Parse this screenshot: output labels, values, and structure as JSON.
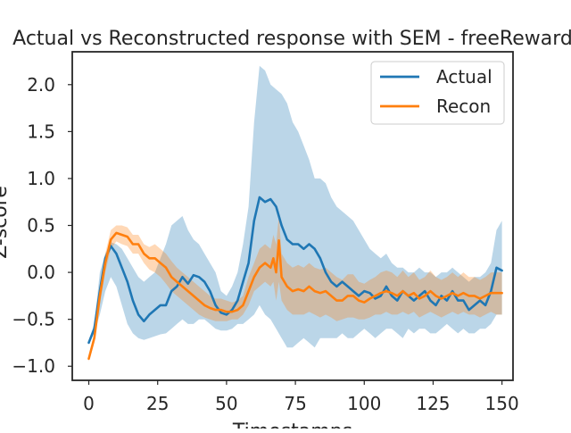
{
  "chart_data": {
    "type": "line",
    "title": "Actual vs Reconstructed response with SEM - freeReward",
    "xlabel": "Timestamps",
    "ylabel": "Z-score",
    "xlim": [
      -6,
      154
    ],
    "ylim": [
      -1.15,
      2.35
    ],
    "xticks": [
      0,
      25,
      50,
      75,
      100,
      125,
      150
    ],
    "yticks": [
      -1.0,
      -0.5,
      0.0,
      0.5,
      1.0,
      1.5,
      2.0
    ],
    "xtick_labels": [
      "0",
      "25",
      "50",
      "75",
      "100",
      "125",
      "150"
    ],
    "ytick_labels": [
      "−1.0",
      "−0.5",
      "0.0",
      "0.5",
      "1.0",
      "1.5",
      "2.0"
    ],
    "grid": false,
    "legend_position": "upper right",
    "series": [
      {
        "name": "Actual",
        "color": "#1f77b4",
        "band_color": "#1f77b4",
        "x": [
          0,
          2,
          4,
          6,
          8,
          10,
          12,
          14,
          16,
          18,
          20,
          22,
          24,
          26,
          28,
          30,
          32,
          34,
          36,
          38,
          40,
          42,
          44,
          46,
          48,
          50,
          52,
          54,
          56,
          58,
          60,
          62,
          64,
          66,
          68,
          70,
          72,
          74,
          76,
          78,
          80,
          82,
          84,
          86,
          88,
          90,
          92,
          94,
          96,
          98,
          100,
          102,
          104,
          106,
          108,
          110,
          112,
          114,
          116,
          118,
          120,
          122,
          124,
          126,
          128,
          130,
          132,
          134,
          136,
          138,
          140,
          142,
          144,
          146,
          148,
          150
        ],
        "y": [
          -0.75,
          -0.6,
          -0.2,
          0.15,
          0.28,
          0.2,
          0.05,
          -0.1,
          -0.3,
          -0.45,
          -0.52,
          -0.45,
          -0.4,
          -0.35,
          -0.35,
          -0.2,
          -0.15,
          -0.05,
          -0.12,
          -0.03,
          -0.05,
          -0.1,
          -0.2,
          -0.35,
          -0.43,
          -0.45,
          -0.4,
          -0.3,
          -0.1,
          0.1,
          0.55,
          0.8,
          0.75,
          0.78,
          0.7,
          0.5,
          0.35,
          0.3,
          0.3,
          0.25,
          0.3,
          0.25,
          0.15,
          0.0,
          -0.1,
          -0.15,
          -0.1,
          -0.15,
          -0.2,
          -0.25,
          -0.2,
          -0.22,
          -0.28,
          -0.25,
          -0.15,
          -0.25,
          -0.3,
          -0.2,
          -0.25,
          -0.3,
          -0.25,
          -0.2,
          -0.3,
          -0.35,
          -0.25,
          -0.3,
          -0.2,
          -0.3,
          -0.3,
          -0.4,
          -0.35,
          -0.3,
          -0.35,
          -0.2,
          0.05,
          0.02
        ],
        "lower": [
          -0.75,
          -0.65,
          -0.45,
          -0.2,
          -0.05,
          -0.15,
          -0.35,
          -0.55,
          -0.65,
          -0.7,
          -0.72,
          -0.7,
          -0.68,
          -0.66,
          -0.65,
          -0.6,
          -0.55,
          -0.5,
          -0.55,
          -0.55,
          -0.5,
          -0.5,
          -0.55,
          -0.6,
          -0.62,
          -0.62,
          -0.6,
          -0.55,
          -0.55,
          -0.5,
          -0.45,
          -0.35,
          -0.45,
          -0.5,
          -0.6,
          -0.7,
          -0.8,
          -0.8,
          -0.75,
          -0.7,
          -0.75,
          -0.8,
          -0.7,
          -0.7,
          -0.7,
          -0.7,
          -0.65,
          -0.7,
          -0.7,
          -0.65,
          -0.6,
          -0.65,
          -0.7,
          -0.65,
          -0.6,
          -0.6,
          -0.65,
          -0.7,
          -0.6,
          -0.65,
          -0.6,
          -0.6,
          -0.65,
          -0.65,
          -0.6,
          -0.55,
          -0.6,
          -0.65,
          -0.6,
          -0.65,
          -0.65,
          -0.6,
          -0.6,
          -0.55,
          -0.45,
          -0.45
        ],
        "upper": [
          -0.72,
          -0.55,
          0.0,
          0.2,
          0.32,
          0.3,
          0.25,
          0.15,
          0.05,
          -0.05,
          -0.1,
          -0.05,
          0.0,
          0.15,
          0.3,
          0.5,
          0.55,
          0.6,
          0.45,
          0.35,
          0.3,
          0.2,
          0.1,
          0.0,
          -0.2,
          -0.25,
          -0.15,
          0.0,
          0.3,
          0.7,
          1.6,
          2.2,
          2.15,
          2.0,
          1.95,
          1.9,
          1.8,
          1.6,
          1.5,
          1.35,
          1.2,
          1.0,
          1.0,
          0.95,
          0.8,
          0.7,
          0.65,
          0.6,
          0.55,
          0.45,
          0.35,
          0.25,
          0.2,
          0.15,
          0.2,
          0.1,
          0.05,
          0.05,
          0.0,
          0.0,
          0.05,
          0.0,
          0.0,
          -0.05,
          0.0,
          0.0,
          0.05,
          0.0,
          -0.05,
          -0.1,
          -0.05,
          -0.05,
          0.0,
          0.1,
          0.45,
          0.55
        ]
      },
      {
        "name": "Recon",
        "color": "#ff7f0e",
        "band_color": "#ff7f0e",
        "x": [
          0,
          2,
          4,
          6,
          8,
          10,
          12,
          14,
          16,
          18,
          20,
          22,
          24,
          26,
          28,
          30,
          32,
          34,
          36,
          38,
          40,
          42,
          44,
          46,
          48,
          50,
          52,
          54,
          56,
          58,
          60,
          62,
          64,
          66,
          67,
          68,
          69,
          70,
          71,
          72,
          74,
          76,
          78,
          80,
          82,
          84,
          86,
          88,
          90,
          92,
          94,
          96,
          98,
          100,
          102,
          104,
          106,
          108,
          110,
          112,
          114,
          116,
          118,
          120,
          122,
          124,
          126,
          128,
          130,
          132,
          134,
          136,
          138,
          140,
          142,
          144,
          146,
          148,
          150
        ],
        "y": [
          -0.92,
          -0.7,
          -0.25,
          0.1,
          0.35,
          0.42,
          0.4,
          0.38,
          0.3,
          0.3,
          0.2,
          0.15,
          0.15,
          0.1,
          0.05,
          -0.05,
          -0.1,
          -0.15,
          -0.2,
          -0.25,
          -0.3,
          -0.35,
          -0.38,
          -0.4,
          -0.4,
          -0.42,
          -0.42,
          -0.4,
          -0.35,
          -0.2,
          -0.05,
          0.05,
          0.1,
          0.05,
          0.15,
          0.0,
          0.34,
          -0.05,
          -0.1,
          -0.15,
          -0.2,
          -0.18,
          -0.2,
          -0.15,
          -0.2,
          -0.22,
          -0.2,
          -0.25,
          -0.3,
          -0.3,
          -0.25,
          -0.25,
          -0.3,
          -0.32,
          -0.28,
          -0.25,
          -0.22,
          -0.2,
          -0.22,
          -0.25,
          -0.2,
          -0.25,
          -0.22,
          -0.28,
          -0.25,
          -0.2,
          -0.25,
          -0.28,
          -0.25,
          -0.22,
          -0.25,
          -0.22,
          -0.25,
          -0.25,
          -0.28,
          -0.25,
          -0.22,
          -0.22,
          -0.22
        ],
        "lower": [
          -0.95,
          -0.75,
          -0.35,
          0.0,
          0.25,
          0.33,
          0.3,
          0.28,
          0.2,
          0.2,
          0.1,
          0.03,
          0.0,
          -0.05,
          -0.12,
          -0.2,
          -0.25,
          -0.3,
          -0.35,
          -0.4,
          -0.45,
          -0.48,
          -0.5,
          -0.52,
          -0.52,
          -0.52,
          -0.5,
          -0.5,
          -0.45,
          -0.35,
          -0.2,
          -0.15,
          -0.1,
          -0.15,
          -0.1,
          -0.3,
          -0.1,
          -0.3,
          -0.35,
          -0.4,
          -0.45,
          -0.45,
          -0.45,
          -0.42,
          -0.45,
          -0.48,
          -0.45,
          -0.48,
          -0.52,
          -0.5,
          -0.48,
          -0.48,
          -0.5,
          -0.5,
          -0.48,
          -0.45,
          -0.45,
          -0.42,
          -0.45,
          -0.45,
          -0.42,
          -0.45,
          -0.42,
          -0.48,
          -0.45,
          -0.42,
          -0.45,
          -0.48,
          -0.45,
          -0.42,
          -0.45,
          -0.42,
          -0.45,
          -0.45,
          -0.48,
          -0.45,
          -0.42,
          -0.45,
          -0.45
        ],
        "upper": [
          -0.88,
          -0.65,
          -0.15,
          0.2,
          0.45,
          0.5,
          0.5,
          0.48,
          0.4,
          0.4,
          0.3,
          0.27,
          0.3,
          0.25,
          0.2,
          0.12,
          0.05,
          0.0,
          -0.05,
          -0.1,
          -0.15,
          -0.2,
          -0.25,
          -0.28,
          -0.28,
          -0.3,
          -0.32,
          -0.3,
          -0.25,
          -0.05,
          0.1,
          0.25,
          0.3,
          0.25,
          0.4,
          0.3,
          0.6,
          0.2,
          0.15,
          0.1,
          0.05,
          0.08,
          0.05,
          0.1,
          0.05,
          0.03,
          0.05,
          0.0,
          -0.05,
          -0.08,
          -0.02,
          -0.02,
          -0.1,
          -0.12,
          -0.08,
          -0.05,
          0.0,
          0.02,
          0.0,
          -0.05,
          0.02,
          -0.05,
          0.0,
          -0.08,
          -0.05,
          0.02,
          -0.05,
          -0.08,
          -0.05,
          0.0,
          -0.05,
          0.0,
          -0.05,
          -0.05,
          -0.08,
          -0.05,
          0.0,
          0.0,
          0.0
        ]
      }
    ]
  }
}
